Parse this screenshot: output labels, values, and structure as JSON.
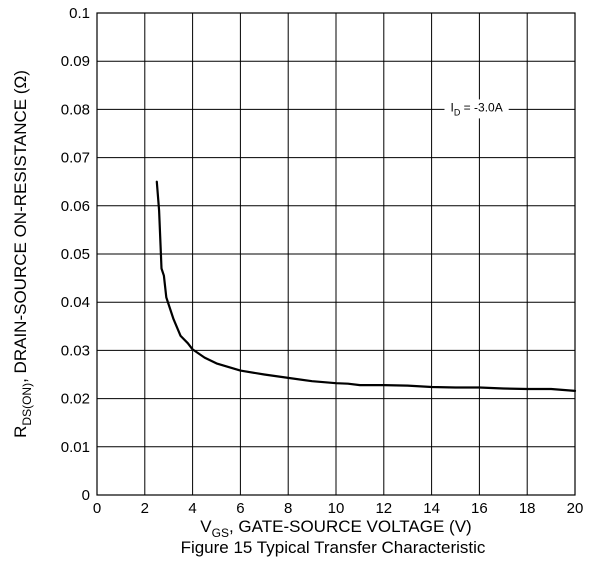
{
  "chart_data": {
    "type": "line",
    "title": "Figure 15 Typical Transfer Characteristic",
    "xlabel": {
      "main": "V",
      "sub": "GS",
      "rest": ", GATE-SOURCE VOLTAGE (V)"
    },
    "ylabel": {
      "main": "R",
      "sub": "DS(ON)",
      "rest": ", DRAIN-SOURCE ON-RESISTANCE (Ω)"
    },
    "annotation": {
      "main": "I",
      "sub": "D",
      "rest": " = -3.0A",
      "x": 15,
      "y": 0.08
    },
    "xlim": [
      0,
      20
    ],
    "ylim": [
      0,
      0.1
    ],
    "xticks": [
      "0",
      "2",
      "4",
      "6",
      "8",
      "10",
      "12",
      "14",
      "16",
      "18",
      "20"
    ],
    "yticks": [
      "0",
      "0.01",
      "0.02",
      "0.03",
      "0.04",
      "0.05",
      "0.06",
      "0.07",
      "0.08",
      "0.09",
      "0.1"
    ],
    "grid": true,
    "series": [
      {
        "color": "#000000",
        "x": [
          2.5,
          2.6,
          2.7,
          2.8,
          2.9,
          3.0,
          3.2,
          3.5,
          3.8,
          4.0,
          4.5,
          5.0,
          6.0,
          7.0,
          8.0,
          9.0,
          10.0,
          10.5,
          11.0,
          12.0,
          13.0,
          14.0,
          15.0,
          16.0,
          17.0,
          18.0,
          19.0,
          20.0
        ],
        "y": [
          0.065,
          0.059,
          0.047,
          0.0455,
          0.041,
          0.0395,
          0.0365,
          0.033,
          0.0315,
          0.0302,
          0.0285,
          0.0273,
          0.0258,
          0.025,
          0.0243,
          0.0236,
          0.0232,
          0.0231,
          0.0228,
          0.0228,
          0.0227,
          0.0224,
          0.0223,
          0.0223,
          0.0221,
          0.022,
          0.022,
          0.0216
        ]
      }
    ]
  }
}
